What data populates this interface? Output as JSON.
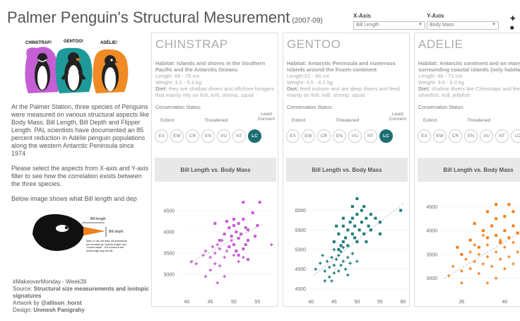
{
  "header": {
    "title": "Palmer Penguin's Structural Mesurement",
    "years": "(2007-09)"
  },
  "filters": [
    {
      "label": "X-Axis",
      "value": "Bill Length"
    },
    {
      "label": "Y-Axis",
      "value": "Body Mass"
    }
  ],
  "legend_mini": [
    "✚ ",
    "■ "
  ],
  "illustration": {
    "labels": [
      "CHINSTRAP!",
      "GENTOO!",
      "ADÉLIE!"
    ]
  },
  "intro": {
    "p1": "At the Palmer Station, three species of Penguins were measured on various structural aspects like Body Mass, Bill Length, Bill Depth and Flipper Length. PAL scientists have documented an 85 percent reduction in Adélie penguin populations along the western Antarctic Peninsula since 1974",
    "p2": "Please select the aspects from X-axis and Y-axis filter to see how the correlation exists between the three species.",
    "p3": "Below image shows what Bill length and dep"
  },
  "diagram": {
    "bill_length": "Bill length",
    "bill_depth": "Bill depth",
    "note": "Note: In raw vsd data, bill dimensions are recorded as \"culmen length\" and \"culmen depth\". The culmen is the dorsal ridge atop the bill."
  },
  "credits": {
    "tag": "#MakeoverMonday - Week28",
    "source_prefix": "Source: ",
    "source": "Structural size measurements and isotopic signatures",
    "artwork_prefix": "Artwork by ",
    "artwork": "@allison_horst",
    "design_prefix": "Design: ",
    "design": "Unmesh Panigrahy"
  },
  "status_scale": {
    "label": "Conservation Status:",
    "extinct": "Extinct",
    "threatened": "Threatened",
    "least": "Least Concern",
    "codes": [
      "EX",
      "EW",
      "CR",
      "EN",
      "VU",
      "NT",
      "LC"
    ]
  },
  "panels": [
    {
      "name": "CHINSTRAP",
      "habitat_label": "Habitat:",
      "habitat": "Islands and shores in the Southern Pacific and the Antarctic Oceans",
      "length": "Length: 68 - 76 cm",
      "weight": "Weight: 3.2 - 5.3 kg",
      "diet_label": "Diet:",
      "diet": "they are shallow divers and offshore foragers that mainly rely on fish, krill, shrimp, squid",
      "status": "LC",
      "chart_title": "Bill Length vs. Body Mass"
    },
    {
      "name": "GENTOO",
      "habitat_label": "Habitat:",
      "habitat": "Antarctic Peninsula and numerous islands around the frozen continent",
      "length": "Length:51 - 90 cm",
      "weight": "Weight: 4.5 - 8.2 kg",
      "diet_label": "Diet:",
      "diet": "feed inshore and are deep divers and feed mainly on fish, krill, shrimp, squid",
      "status": "LC",
      "chart_title": "Bill Length vs. Body Mass"
    },
    {
      "name": "ADELIE",
      "habitat_label": "Habitat:",
      "habitat": "Antarctic continent and on many surrounding coastal islands (only habitat)",
      "length": "Length: 46 - 71 cm",
      "weight": "Weight: 3.6 - 6.0 kg",
      "diet_label": "Diet:",
      "diet": "shallow divers like Chinstraps and feed silverfish, krill, jellyfish",
      "status": "",
      "chart_title": "Bill Length vs. Body Mass"
    }
  ],
  "colors": {
    "chinstrap": "#c55fd4",
    "gentoo": "#1f7a7a",
    "adelie": "#f07f1c",
    "lc_active": "#1a6e72"
  },
  "chart_data": [
    {
      "type": "scatter",
      "title": "Bill Length vs. Body Mass",
      "xlim": [
        38,
        59
      ],
      "ylim": [
        2550,
        4950
      ],
      "xticks": [
        40,
        45,
        50,
        55
      ],
      "yticks": [
        3000,
        3500,
        4000,
        4500
      ],
      "trend": [
        [
          40.5,
          3270
        ],
        [
          56,
          4180
        ]
      ],
      "series": [
        {
          "marker": "plus",
          "points": [
            [
              41,
              3300
            ],
            [
              42,
              3250
            ],
            [
              43.5,
              3450
            ],
            [
              44,
              3550
            ],
            [
              45,
              3400
            ],
            [
              45.5,
              3650
            ],
            [
              46,
              3500
            ],
            [
              46.5,
              3700
            ],
            [
              47,
              3600
            ],
            [
              46,
              3250
            ],
            [
              45,
              3100
            ],
            [
              44,
              2950
            ],
            [
              46.5,
              2800
            ],
            [
              47,
              3200
            ],
            [
              48,
              3400
            ],
            [
              48.5,
              3550
            ],
            [
              49,
              3650
            ],
            [
              50,
              3450
            ],
            [
              51,
              3300
            ],
            [
              50.5,
              3550
            ],
            [
              52,
              3400
            ],
            [
              49.5,
              3800
            ],
            [
              58,
              3700
            ],
            [
              48,
              2950
            ],
            [
              47.5,
              3800
            ]
          ]
        },
        {
          "marker": "square",
          "points": [
            [
              46,
              4200
            ],
            [
              47,
              3800
            ],
            [
              48,
              3950
            ],
            [
              49,
              4100
            ],
            [
              49.5,
              3900
            ],
            [
              50,
              3700
            ],
            [
              50.5,
              4000
            ],
            [
              51,
              4200
            ],
            [
              51,
              3850
            ],
            [
              52,
              4300
            ],
            [
              52.5,
              4100
            ],
            [
              53,
              4050
            ],
            [
              54,
              4450
            ],
            [
              55,
              4150
            ],
            [
              53,
              3800
            ],
            [
              50,
              4300
            ],
            [
              52,
              3600
            ],
            [
              51.5,
              3950
            ],
            [
              49,
              3650
            ],
            [
              55.5,
              4700
            ],
            [
              53,
              3350
            ],
            [
              50.5,
              3550
            ],
            [
              52,
              4700
            ],
            [
              54.5,
              3900
            ],
            [
              51,
              3450
            ],
            [
              50,
              4150
            ],
            [
              48.5,
              4250
            ],
            [
              52.5,
              3700
            ]
          ]
        }
      ]
    },
    {
      "type": "scatter",
      "title": "Bill Length vs. Body Mass",
      "xlim": [
        39.5,
        61
      ],
      "ylim": [
        3880,
        6480
      ],
      "xticks": [
        40,
        45,
        50,
        55,
        60
      ],
      "yticks": [
        4000,
        4500,
        5000,
        5500,
        6000
      ],
      "trend": [
        [
          40.5,
          4330
        ],
        [
          60,
          6180
        ]
      ],
      "series": [
        {
          "marker": "plus",
          "points": [
            [
              41,
              4500
            ],
            [
              42,
              4650
            ],
            [
              43,
              4450
            ],
            [
              43.5,
              4700
            ],
            [
              44,
              4550
            ],
            [
              44.5,
              4800
            ],
            [
              45,
              4600
            ],
            [
              45,
              4400
            ],
            [
              45.5,
              4750
            ],
            [
              46,
              4450
            ],
            [
              46,
              4850
            ],
            [
              46.5,
              4600
            ],
            [
              47,
              4700
            ],
            [
              47.5,
              4500
            ],
            [
              48,
              4800
            ],
            [
              48.5,
              4650
            ],
            [
              49,
              4900
            ],
            [
              44,
              4300
            ],
            [
              42.5,
              4850
            ],
            [
              45,
              5000
            ],
            [
              47,
              5050
            ],
            [
              43,
              4200
            ],
            [
              46.5,
              4950
            ],
            [
              48,
              4350
            ],
            [
              44.5,
              4200
            ],
            [
              50,
              4700
            ]
          ]
        },
        {
          "marker": "square",
          "points": [
            [
              45,
              5200
            ],
            [
              46,
              5400
            ],
            [
              46.5,
              5100
            ],
            [
              47,
              5600
            ],
            [
              47.5,
              5300
            ],
            [
              48,
              5500
            ],
            [
              48.5,
              5700
            ],
            [
              49,
              5400
            ],
            [
              49,
              5800
            ],
            [
              49.5,
              5600
            ],
            [
              50,
              5900
            ],
            [
              50,
              5200
            ],
            [
              50.5,
              5500
            ],
            [
              51,
              5700
            ],
            [
              51,
              6000
            ],
            [
              51.5,
              5400
            ],
            [
              52,
              5800
            ],
            [
              52.5,
              5600
            ],
            [
              53,
              5500
            ],
            [
              53,
              5900
            ],
            [
              54,
              5800
            ],
            [
              55,
              5400
            ],
            [
              59.5,
              6000
            ],
            [
              50,
              6300
            ],
            [
              49,
              6100
            ],
            [
              47,
              5200
            ],
            [
              45.5,
              5600
            ],
            [
              46,
              5000
            ],
            [
              48,
              5100
            ],
            [
              52,
              5200
            ],
            [
              55,
              5700
            ],
            [
              51.5,
              6100
            ],
            [
              49.5,
              5300
            ],
            [
              47,
              5800
            ]
          ]
        }
      ]
    },
    {
      "type": "scatter",
      "title": "Bill Length vs. Body Mass",
      "xlim": [
        32.5,
        44
      ],
      "ylim": [
        2680,
        4820
      ],
      "xticks": [
        35,
        40
      ],
      "yticks": [
        3000,
        3500,
        4000,
        4500
      ],
      "trend": [
        [
          33,
          3000
        ],
        [
          44,
          4200
        ]
      ],
      "series": [
        {
          "marker": "plus",
          "points": [
            [
              33.5,
              3050
            ],
            [
              34,
              3250
            ],
            [
              35,
              3150
            ],
            [
              35.5,
              3400
            ],
            [
              36,
              3200
            ],
            [
              36,
              3550
            ],
            [
              36.5,
              3350
            ],
            [
              37,
              3100
            ],
            [
              37,
              3500
            ],
            [
              37.5,
              3300
            ],
            [
              38,
              3450
            ],
            [
              38,
              3700
            ],
            [
              38.5,
              3250
            ],
            [
              39,
              3550
            ],
            [
              39,
              3000
            ],
            [
              39.5,
              3400
            ],
            [
              40,
              3650
            ],
            [
              40,
              3200
            ],
            [
              40.5,
              3450
            ],
            [
              41,
              3300
            ],
            [
              41,
              3750
            ],
            [
              41.5,
              3550
            ],
            [
              42,
              3350
            ],
            [
              35,
              2900
            ],
            [
              36.5,
              3700
            ],
            [
              38,
              2900
            ],
            [
              39.5,
              3800
            ],
            [
              37.5,
              3900
            ]
          ]
        },
        {
          "marker": "square",
          "points": [
            [
              35,
              3500
            ],
            [
              36,
              3800
            ],
            [
              37,
              3650
            ],
            [
              37.5,
              4000
            ],
            [
              38,
              3850
            ],
            [
              38.5,
              4100
            ],
            [
              39,
              3900
            ],
            [
              39,
              4250
            ],
            [
              39.5,
              3750
            ],
            [
              40,
              4000
            ],
            [
              40,
              4300
            ],
            [
              40.5,
              3850
            ],
            [
              41,
              4100
            ],
            [
              41,
              4400
            ],
            [
              41.5,
              3950
            ],
            [
              42,
              4200
            ],
            [
              42.5,
              4050
            ],
            [
              43,
              4350
            ],
            [
              43.5,
              4500
            ],
            [
              43.5,
              4100
            ],
            [
              39,
              4550
            ],
            [
              42,
              4650
            ],
            [
              40.5,
              4550
            ],
            [
              38,
              4400
            ],
            [
              36.5,
              4150
            ],
            [
              34.5,
              3650
            ]
          ]
        }
      ]
    }
  ]
}
